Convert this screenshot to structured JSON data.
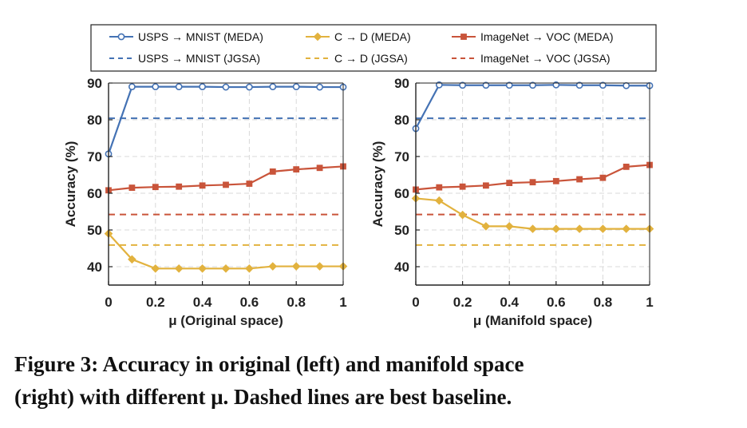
{
  "caption": {
    "line1": "Figure 3: Accuracy in original (left) and manifold space",
    "line2": "(right) with different μ. Dashed lines are best baseline."
  },
  "colors": {
    "blue": "#4472b4",
    "yellow": "#e2b23e",
    "red": "#c9543a",
    "grid": "#d9d9d9"
  },
  "legend": [
    {
      "label": "USPS → MNIST (MEDA)",
      "color": "#4472b4",
      "style": "solid",
      "marker": "circle"
    },
    {
      "label": "C → D (MEDA)",
      "color": "#e2b23e",
      "style": "solid",
      "marker": "diamond"
    },
    {
      "label": "ImageNet → VOC (MEDA)",
      "color": "#c9543a",
      "style": "solid",
      "marker": "square"
    },
    {
      "label": "USPS → MNIST (JGSA)",
      "color": "#4472b4",
      "style": "dashed",
      "marker": "none"
    },
    {
      "label": "C → D (JGSA)",
      "color": "#e2b23e",
      "style": "dashed",
      "marker": "none"
    },
    {
      "label": "ImageNet → VOC (JGSA)",
      "color": "#c9543a",
      "style": "dashed",
      "marker": "none"
    }
  ],
  "chart_data": [
    {
      "type": "line",
      "xlabel": "μ (Original space)",
      "ylabel": "Accuracy (%)",
      "xlim": [
        0,
        1
      ],
      "ylim": [
        35,
        90
      ],
      "xticks": [
        0,
        0.2,
        0.4,
        0.6,
        0.8,
        1
      ],
      "xtick_labels": [
        "0",
        "0.2",
        "0.4",
        "0.6",
        "0.8",
        "1"
      ],
      "yticks": [
        40,
        50,
        60,
        70,
        80,
        90
      ],
      "grid": true,
      "x": [
        0,
        0.1,
        0.2,
        0.3,
        0.4,
        0.5,
        0.6,
        0.7,
        0.8,
        0.9,
        1.0
      ],
      "series": [
        {
          "name": "USPS → MNIST (MEDA)",
          "color": "#4472b4",
          "marker": "circle",
          "values": [
            70.7,
            89.0,
            89.0,
            89.0,
            89.0,
            88.9,
            88.9,
            89.0,
            89.0,
            88.9,
            88.9
          ]
        },
        {
          "name": "C → D (MEDA)",
          "color": "#e2b23e",
          "marker": "diamond",
          "values": [
            49.0,
            42.0,
            39.5,
            39.5,
            39.5,
            39.5,
            39.5,
            40.1,
            40.1,
            40.1,
            40.1
          ]
        },
        {
          "name": "ImageNet → VOC (MEDA)",
          "color": "#c9543a",
          "marker": "square",
          "values": [
            60.8,
            61.5,
            61.7,
            61.8,
            62.1,
            62.3,
            62.6,
            65.9,
            66.5,
            66.9,
            67.3
          ]
        }
      ],
      "baselines": [
        {
          "name": "USPS → MNIST (JGSA)",
          "color": "#4472b4",
          "value": 80.4
        },
        {
          "name": "C → D (JGSA)",
          "color": "#e2b23e",
          "value": 45.9
        },
        {
          "name": "ImageNet → VOC (JGSA)",
          "color": "#c9543a",
          "value": 54.2
        }
      ]
    },
    {
      "type": "line",
      "xlabel": "μ (Manifold space)",
      "ylabel": "Accuracy (%)",
      "xlim": [
        0,
        1
      ],
      "ylim": [
        35,
        90
      ],
      "xticks": [
        0,
        0.2,
        0.4,
        0.6,
        0.8,
        1
      ],
      "xtick_labels": [
        "0",
        "0.2",
        "0.4",
        "0.6",
        "0.8",
        "1"
      ],
      "yticks": [
        40,
        50,
        60,
        70,
        80,
        90
      ],
      "grid": true,
      "x": [
        0,
        0.1,
        0.2,
        0.3,
        0.4,
        0.5,
        0.6,
        0.7,
        0.8,
        0.9,
        1.0
      ],
      "series": [
        {
          "name": "USPS → MNIST (MEDA)",
          "color": "#4472b4",
          "marker": "circle",
          "values": [
            77.6,
            89.5,
            89.4,
            89.4,
            89.4,
            89.4,
            89.5,
            89.4,
            89.4,
            89.3,
            89.3
          ]
        },
        {
          "name": "C → D (MEDA)",
          "color": "#e2b23e",
          "marker": "diamond",
          "values": [
            58.6,
            58.0,
            54.1,
            51.0,
            51.0,
            50.3,
            50.3,
            50.3,
            50.3,
            50.3,
            50.3
          ]
        },
        {
          "name": "ImageNet → VOC (MEDA)",
          "color": "#c9543a",
          "marker": "square",
          "values": [
            61.0,
            61.6,
            61.8,
            62.1,
            62.8,
            63.0,
            63.3,
            63.8,
            64.2,
            67.2,
            67.7
          ]
        }
      ],
      "baselines": [
        {
          "name": "USPS → MNIST (JGSA)",
          "color": "#4472b4",
          "value": 80.4
        },
        {
          "name": "C → D (JGSA)",
          "color": "#e2b23e",
          "value": 45.9
        },
        {
          "name": "ImageNet → VOC (JGSA)",
          "color": "#c9543a",
          "value": 54.2
        }
      ]
    }
  ]
}
